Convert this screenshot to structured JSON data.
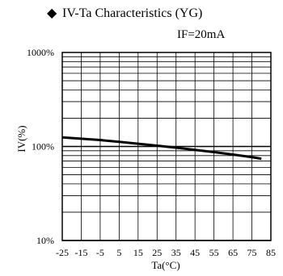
{
  "chart_data": {
    "type": "line",
    "title_marker": "◆",
    "title": "IV-Ta  Characteristics (YG)",
    "subtitle": "IF=20mA",
    "xlabel": "Ta(°C)",
    "ylabel": "IV(%)",
    "x_ticks": [
      -25,
      -15,
      -5,
      5,
      15,
      25,
      35,
      45,
      55,
      65,
      75,
      85
    ],
    "x_tick_labels": [
      "-25",
      "-15",
      "-5",
      "5",
      "15",
      "25",
      "35",
      "45",
      "55",
      "65",
      "75",
      "85"
    ],
    "xlim": [
      -25,
      85
    ],
    "y_scale": "log",
    "ylim": [
      10,
      1000
    ],
    "y_ticks": [
      10,
      100,
      1000
    ],
    "y_tick_labels": [
      "10%",
      "100%",
      "1000%"
    ],
    "grid": true,
    "series": [
      {
        "color": "#000000",
        "x": [
          -25,
          -15,
          -5,
          5,
          15,
          25,
          35,
          45,
          55,
          65,
          75,
          80
        ],
        "y": [
          125,
          121,
          117,
          112,
          107,
          102,
          97,
          92,
          87,
          82,
          77,
          74
        ]
      }
    ]
  }
}
